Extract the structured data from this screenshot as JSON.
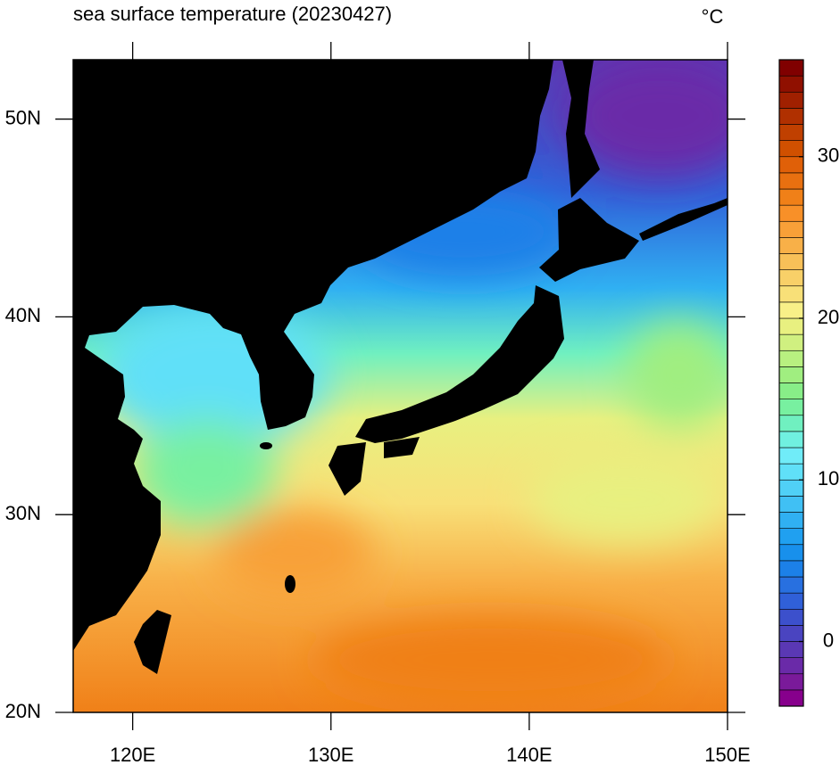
{
  "title": "sea surface temperature (20230427)",
  "unit": "°C",
  "map": {
    "xlim": [
      117,
      150
    ],
    "ylim": [
      20,
      53
    ],
    "xticks": [
      {
        "value": 120,
        "label": "120E"
      },
      {
        "value": 130,
        "label": "130E"
      },
      {
        "value": 140,
        "label": "140E"
      },
      {
        "value": 150,
        "label": "150E"
      }
    ],
    "yticks": [
      {
        "value": 20,
        "label": "20N"
      },
      {
        "value": 30,
        "label": "30N"
      },
      {
        "value": 40,
        "label": "40N"
      },
      {
        "value": 50,
        "label": "50N"
      }
    ],
    "land_color": "#000000"
  },
  "colorbar": {
    "lim": [
      -4,
      36
    ],
    "ticks": [
      0,
      10,
      20,
      30
    ],
    "colors": [
      "#87008c",
      "#7a1a9a",
      "#6a2aa8",
      "#5a38b4",
      "#4a44c0",
      "#3c50cc",
      "#3060d8",
      "#2870e0",
      "#1c80e8",
      "#1890ec",
      "#20a0f0",
      "#30b0f2",
      "#40c0f4",
      "#50d0f6",
      "#60e0f8",
      "#70ecf8",
      "#70f0e0",
      "#70f0c0",
      "#78f0a0",
      "#88ee88",
      "#a0ee80",
      "#b8f080",
      "#d0f080",
      "#e8f080",
      "#f8f088",
      "#f8e078",
      "#f8d068",
      "#f8c058",
      "#f8b048",
      "#f8a038",
      "#f89028",
      "#f08018",
      "#e87010",
      "#e06008",
      "#d05000",
      "#c04000",
      "#b03000",
      "#a02000",
      "#901000",
      "#800000"
    ]
  }
}
